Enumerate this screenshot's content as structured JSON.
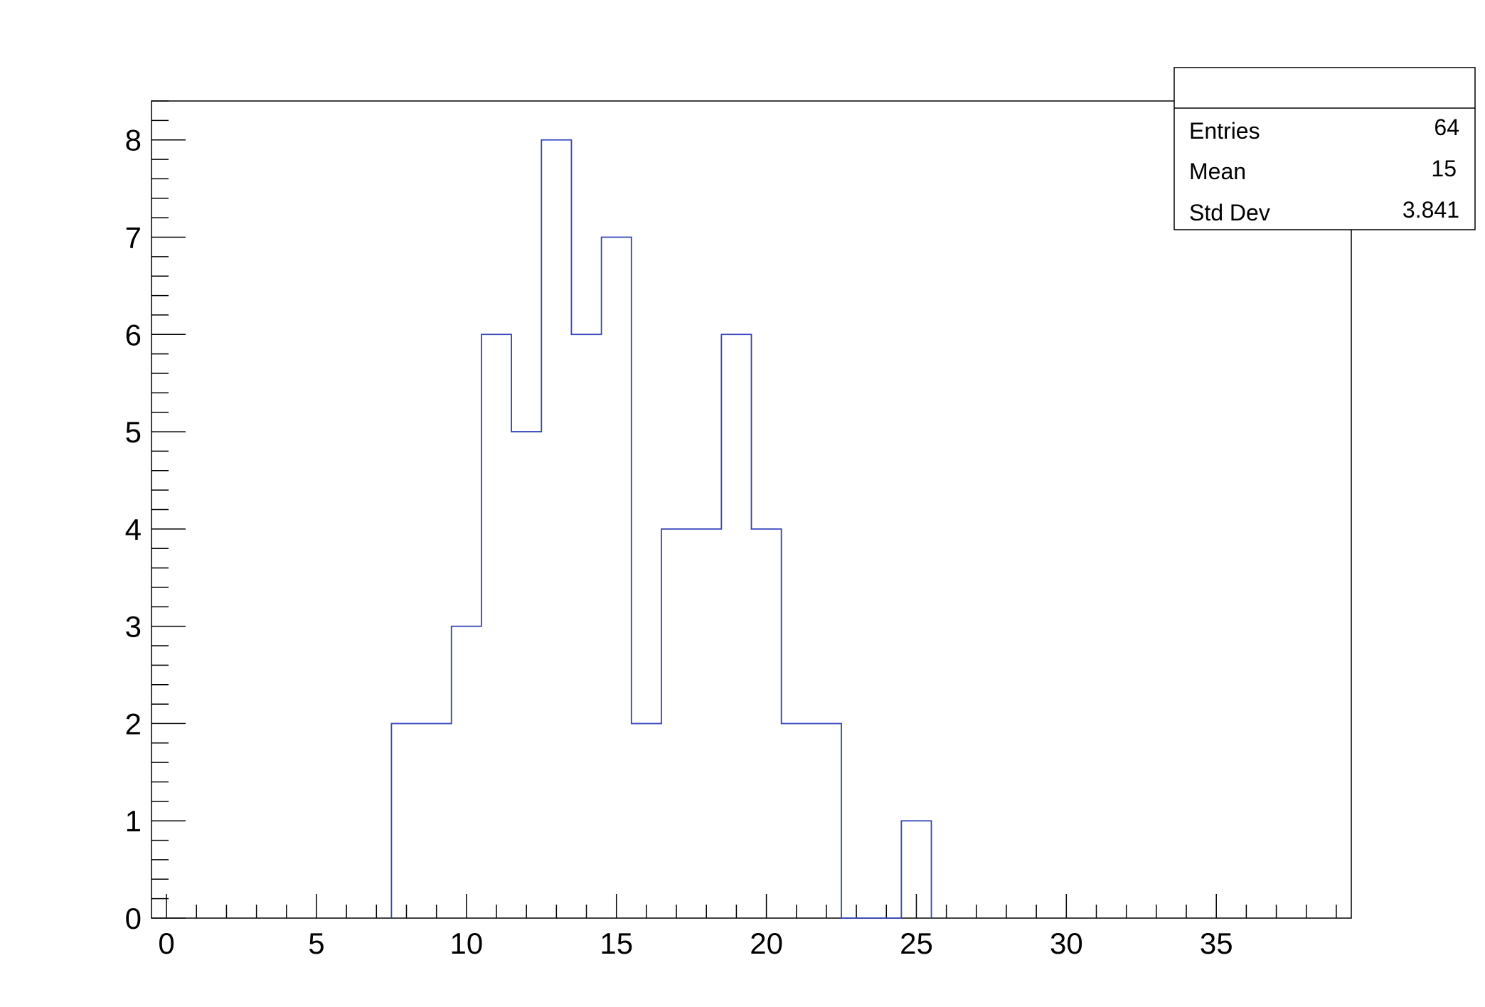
{
  "chart_data": {
    "type": "bar",
    "style": "step-histogram",
    "title": "",
    "xlabel": "",
    "ylabel": "",
    "xlim": [
      -0.5,
      39.5
    ],
    "ylim": [
      0,
      8.4
    ],
    "bin_width": 1,
    "x_ticks": [
      0,
      5,
      10,
      15,
      20,
      25,
      30,
      35
    ],
    "y_ticks": [
      0,
      1,
      2,
      3,
      4,
      5,
      6,
      7,
      8
    ],
    "bins": [
      {
        "center": 8,
        "value": 2
      },
      {
        "center": 9,
        "value": 2
      },
      {
        "center": 10,
        "value": 3
      },
      {
        "center": 11,
        "value": 6
      },
      {
        "center": 12,
        "value": 5
      },
      {
        "center": 13,
        "value": 8
      },
      {
        "center": 14,
        "value": 6
      },
      {
        "center": 15,
        "value": 7
      },
      {
        "center": 16,
        "value": 2
      },
      {
        "center": 17,
        "value": 4
      },
      {
        "center": 18,
        "value": 4
      },
      {
        "center": 19,
        "value": 6
      },
      {
        "center": 20,
        "value": 4
      },
      {
        "center": 21,
        "value": 2
      },
      {
        "center": 22,
        "value": 2
      },
      {
        "center": 23,
        "value": 0
      },
      {
        "center": 24,
        "value": 0
      },
      {
        "center": 25,
        "value": 1
      }
    ],
    "line_color": "#3344bb",
    "grid": false,
    "legend_position": "top-right"
  },
  "stats_box": {
    "title": "",
    "rows": [
      {
        "label": "Entries",
        "value": "64"
      },
      {
        "label": "Mean",
        "value": "15"
      },
      {
        "label": "Std Dev",
        "value": "3.841"
      }
    ]
  }
}
